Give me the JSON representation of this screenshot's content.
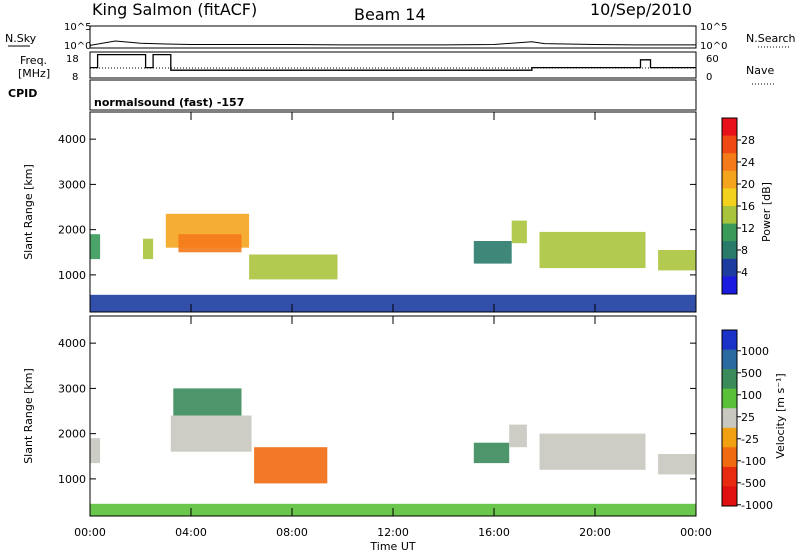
{
  "header": {
    "station": "King Salmon (fitACF)",
    "beam": "Beam 14",
    "date": "10/Sep/2010"
  },
  "top_labels": {
    "nsky": "N.Sky",
    "nsearch": "N.Search",
    "freq_line1": "Freq.",
    "freq_line2": "[MHz]",
    "nave": "Nave",
    "cpid": "CPID",
    "cpid_value": "normalsound (fast) -157",
    "noise_ticks": [
      "10^5",
      "10^0"
    ],
    "freq_ticks": [
      "18",
      "8"
    ],
    "nave_ticks": [
      "60",
      "0"
    ]
  },
  "power_colorbar": {
    "label": "Power [dB]",
    "ticks": [
      "28",
      "24",
      "20",
      "16",
      "12",
      "8",
      "4"
    ],
    "colors": [
      "#e8101a",
      "#f04a14",
      "#f57a1a",
      "#f5a41e",
      "#f2d21c",
      "#a8c43c",
      "#3a9a5a",
      "#2a7a6a",
      "#1c3ca0",
      "#1a1ae0"
    ]
  },
  "velocity_colorbar": {
    "label": "Velocity [m s⁻¹]",
    "ticks": [
      "1000",
      "500",
      "100",
      "25",
      "-25",
      "-100",
      "-500",
      "-1000"
    ],
    "colors": [
      "#1a32c8",
      "#2a6aa0",
      "#3a8a5a",
      "#5ac03a",
      "#c8c8c0",
      "#f0a010",
      "#f06a10",
      "#e82a10",
      "#e01010"
    ]
  },
  "axes": {
    "ylabel": "Slant Range [km]",
    "xlabel": "Time UT",
    "yticks": [
      "4000",
      "3000",
      "2000",
      "1000"
    ],
    "xticks": [
      "00:00",
      "04:00",
      "08:00",
      "12:00",
      "16:00",
      "20:00",
      "00:00"
    ]
  },
  "chart_data": [
    {
      "type": "line",
      "panel": "noise",
      "x": [
        0,
        1,
        2,
        3,
        4,
        6,
        8,
        10,
        12,
        14,
        16,
        17.5,
        18,
        20,
        22,
        24
      ],
      "series": [
        {
          "values": [
            0.6,
            1.6,
            1.1,
            0.9,
            0.8,
            0.8,
            0.8,
            0.7,
            0.7,
            0.7,
            0.8,
            1.4,
            1.0,
            0.8,
            0.7,
            0.7
          ]
        }
      ],
      "xlim": [
        0,
        24
      ],
      "ylim_labels": [
        "10^0",
        "10^5"
      ]
    },
    {
      "type": "line",
      "panel": "frequency",
      "x": [
        0,
        0.3,
        0.3,
        2.2,
        2.2,
        2.5,
        2.5,
        3.2,
        3.2,
        17.5,
        17.5,
        21.8,
        21.8,
        22.2,
        22.2,
        24
      ],
      "series": [
        {
          "values": [
            12,
            12,
            17,
            17,
            12,
            12,
            17,
            17,
            11,
            11,
            12,
            12,
            15,
            15,
            12,
            12
          ]
        }
      ],
      "xlim": [
        0,
        24
      ],
      "ylim": [
        8,
        18
      ]
    },
    {
      "type": "heatmap",
      "panel": "power",
      "x_unit": "hours UT",
      "y_unit": "km",
      "xlim": [
        0,
        24
      ],
      "ylim": [
        180,
        4600
      ],
      "zlim": [
        0,
        30
      ],
      "regions": [
        {
          "t": [
            0.0,
            0.4
          ],
          "r": [
            1350,
            1900
          ],
          "v": 10
        },
        {
          "t": [
            2.1,
            2.5
          ],
          "r": [
            1350,
            1800
          ],
          "v": 14
        },
        {
          "t": [
            3.0,
            6.3
          ],
          "r": [
            1600,
            2350
          ],
          "v": 18
        },
        {
          "t": [
            3.5,
            6.0
          ],
          "r": [
            1500,
            1900
          ],
          "v": 22
        },
        {
          "t": [
            6.3,
            9.8
          ],
          "r": [
            900,
            1450
          ],
          "v": 14
        },
        {
          "t": [
            15.2,
            16.7
          ],
          "r": [
            1250,
            1750
          ],
          "v": 8
        },
        {
          "t": [
            16.7,
            17.3
          ],
          "r": [
            1700,
            2200
          ],
          "v": 14
        },
        {
          "t": [
            17.8,
            22.0
          ],
          "r": [
            1150,
            1950
          ],
          "v": 14
        },
        {
          "t": [
            22.5,
            24.0
          ],
          "r": [
            1100,
            1550
          ],
          "v": 14
        },
        {
          "t": [
            0.0,
            24.0
          ],
          "r": [
            180,
            560
          ],
          "v": 4
        }
      ]
    },
    {
      "type": "heatmap",
      "panel": "velocity",
      "x_unit": "hours UT",
      "y_unit": "km",
      "xlim": [
        0,
        24
      ],
      "ylim": [
        180,
        4600
      ],
      "zlim": [
        -1000,
        1000
      ],
      "regions": [
        {
          "t": [
            0.0,
            0.4
          ],
          "r": [
            1350,
            1900
          ],
          "v": 0
        },
        {
          "t": [
            3.2,
            6.4
          ],
          "r": [
            1600,
            2400
          ],
          "v": 0
        },
        {
          "t": [
            3.3,
            6.0
          ],
          "r": [
            2400,
            3000
          ],
          "v": 250
        },
        {
          "t": [
            6.5,
            9.4
          ],
          "r": [
            900,
            1700
          ],
          "v": -300
        },
        {
          "t": [
            15.2,
            16.6
          ],
          "r": [
            1350,
            1800
          ],
          "v": 100
        },
        {
          "t": [
            16.6,
            17.3
          ],
          "r": [
            1700,
            2200
          ],
          "v": 0
        },
        {
          "t": [
            17.8,
            22.0
          ],
          "r": [
            1200,
            2000
          ],
          "v": 0
        },
        {
          "t": [
            22.5,
            24.0
          ],
          "r": [
            1100,
            1550
          ],
          "v": 0
        },
        {
          "t": [
            0.0,
            24.0
          ],
          "r": [
            180,
            450
          ],
          "v": 60
        }
      ]
    }
  ]
}
